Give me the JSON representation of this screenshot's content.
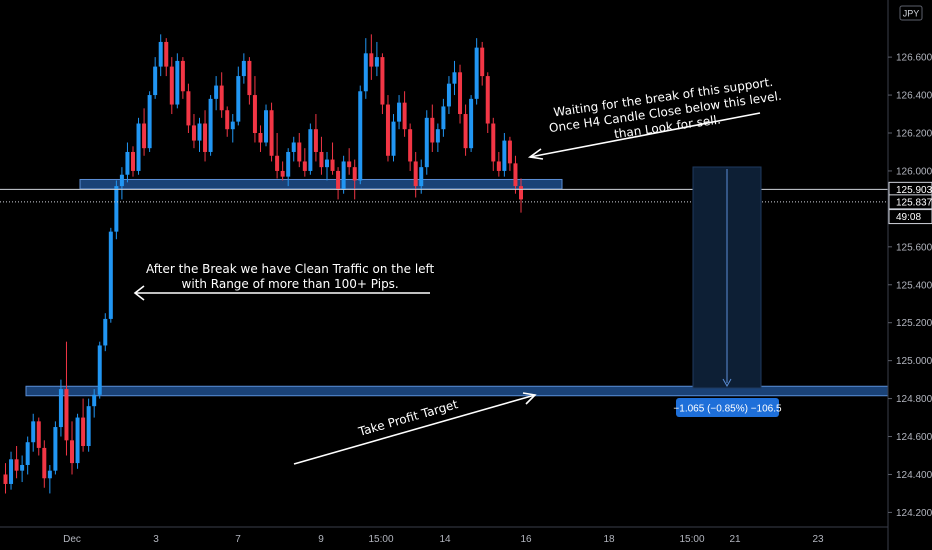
{
  "chart_data": {
    "type": "candlestick",
    "currency": "JPY",
    "ylim": [
      124.16,
      126.88
    ],
    "y_ticks": [
      "126.600",
      "126.400",
      "126.200",
      "126.000",
      "125.600",
      "125.400",
      "125.200",
      "125.000",
      "124.800",
      "124.600",
      "124.400",
      "124.200"
    ],
    "x_ticks": [
      "Dec",
      "3",
      "7",
      "9",
      "15:00",
      "14",
      "16",
      "18",
      "21",
      "23",
      "15:00"
    ],
    "price_tags": [
      {
        "label": "125.903",
        "value": 125.903,
        "style": "outline"
      },
      {
        "label": "125.837",
        "value": 125.837,
        "style": "outline"
      },
      {
        "label": "49:08",
        "value": 125.77,
        "style": "outline"
      }
    ],
    "zones": [
      {
        "name": "support",
        "low": 125.905,
        "high": 125.955
      },
      {
        "name": "target",
        "low": 124.815,
        "high": 124.865
      }
    ],
    "horizontal_lines": [
      125.903,
      125.837
    ],
    "measure": {
      "label": "−1.065 (−0.85%) −106.5",
      "from": 125.9,
      "to": 124.835
    },
    "candles": [
      [
        124.4,
        124.46,
        124.3,
        124.35
      ],
      [
        124.35,
        124.52,
        124.32,
        124.48
      ],
      [
        124.48,
        124.55,
        124.38,
        124.42
      ],
      [
        124.42,
        124.5,
        124.36,
        124.45
      ],
      [
        124.45,
        124.6,
        124.4,
        124.57
      ],
      [
        124.57,
        124.72,
        124.52,
        124.68
      ],
      [
        124.68,
        124.7,
        124.5,
        124.54
      ],
      [
        124.54,
        124.58,
        124.33,
        124.38
      ],
      [
        124.38,
        124.45,
        124.3,
        124.42
      ],
      [
        124.42,
        124.68,
        124.4,
        124.65
      ],
      [
        124.65,
        124.9,
        124.6,
        124.85
      ],
      [
        124.85,
        125.1,
        124.5,
        124.58
      ],
      [
        124.58,
        124.68,
        124.4,
        124.46
      ],
      [
        124.46,
        124.72,
        124.43,
        124.7
      ],
      [
        124.7,
        124.8,
        124.52,
        124.55
      ],
      [
        124.55,
        124.8,
        124.52,
        124.76
      ],
      [
        124.76,
        124.85,
        124.7,
        124.82
      ],
      [
        124.82,
        125.1,
        124.8,
        125.08
      ],
      [
        125.08,
        125.25,
        125.05,
        125.22
      ],
      [
        125.22,
        125.7,
        125.2,
        125.68
      ],
      [
        125.68,
        125.95,
        125.64,
        125.92
      ],
      [
        125.92,
        126.02,
        125.85,
        125.98
      ],
      [
        125.98,
        126.15,
        125.94,
        126.1
      ],
      [
        126.1,
        126.13,
        125.97,
        126.0
      ],
      [
        126.0,
        126.28,
        125.98,
        126.25
      ],
      [
        126.25,
        126.33,
        126.08,
        126.12
      ],
      [
        126.12,
        126.42,
        126.1,
        126.4
      ],
      [
        126.4,
        126.6,
        126.38,
        126.55
      ],
      [
        126.55,
        126.72,
        126.5,
        126.68
      ],
      [
        126.68,
        126.7,
        126.5,
        126.55
      ],
      [
        126.55,
        126.6,
        126.3,
        126.35
      ],
      [
        126.35,
        126.62,
        126.33,
        126.58
      ],
      [
        126.58,
        126.6,
        126.38,
        126.42
      ],
      [
        126.42,
        126.46,
        126.2,
        126.24
      ],
      [
        126.24,
        126.3,
        126.12,
        126.16
      ],
      [
        126.16,
        126.28,
        126.1,
        126.25
      ],
      [
        126.25,
        126.32,
        126.05,
        126.1
      ],
      [
        126.1,
        126.4,
        126.08,
        126.38
      ],
      [
        126.38,
        126.5,
        126.32,
        126.45
      ],
      [
        126.45,
        126.52,
        126.28,
        126.32
      ],
      [
        126.32,
        126.34,
        126.18,
        126.22
      ],
      [
        126.22,
        126.3,
        126.15,
        126.26
      ],
      [
        126.26,
        126.55,
        126.24,
        126.5
      ],
      [
        126.5,
        126.62,
        126.46,
        126.58
      ],
      [
        126.58,
        126.6,
        126.35,
        126.4
      ],
      [
        126.4,
        126.5,
        126.15,
        126.2
      ],
      [
        126.2,
        126.24,
        126.1,
        126.15
      ],
      [
        126.15,
        126.35,
        126.13,
        126.32
      ],
      [
        126.32,
        126.36,
        126.05,
        126.08
      ],
      [
        126.08,
        126.2,
        125.96,
        126.0
      ],
      [
        126.0,
        126.05,
        125.95,
        125.97
      ],
      [
        125.97,
        126.12,
        125.92,
        126.1
      ],
      [
        126.1,
        126.18,
        126.05,
        126.15
      ],
      [
        126.15,
        126.2,
        126.02,
        126.05
      ],
      [
        126.05,
        126.12,
        125.97,
        126.0
      ],
      [
        126.0,
        126.25,
        125.98,
        126.22
      ],
      [
        126.22,
        126.3,
        126.05,
        126.1
      ],
      [
        126.1,
        126.18,
        125.98,
        126.02
      ],
      [
        126.02,
        126.1,
        125.95,
        126.06
      ],
      [
        126.06,
        126.15,
        125.98,
        126.0
      ],
      [
        126.0,
        126.02,
        125.85,
        125.9
      ],
      [
        125.9,
        126.08,
        125.88,
        126.05
      ],
      [
        126.05,
        126.12,
        125.98,
        126.02
      ],
      [
        126.02,
        126.06,
        125.85,
        125.95
      ],
      [
        125.95,
        126.45,
        125.93,
        126.42
      ],
      [
        126.42,
        126.7,
        126.38,
        126.62
      ],
      [
        126.62,
        126.72,
        126.48,
        126.55
      ],
      [
        126.55,
        126.68,
        126.5,
        126.6
      ],
      [
        126.6,
        126.62,
        126.3,
        126.35
      ],
      [
        126.35,
        126.4,
        126.05,
        126.08
      ],
      [
        126.08,
        126.3,
        126.05,
        126.26
      ],
      [
        126.26,
        126.4,
        126.22,
        126.36
      ],
      [
        126.36,
        126.42,
        126.18,
        126.22
      ],
      [
        126.22,
        126.25,
        126.0,
        126.05
      ],
      [
        126.05,
        126.1,
        125.86,
        125.92
      ],
      [
        125.92,
        126.06,
        125.88,
        126.02
      ],
      [
        126.02,
        126.32,
        125.98,
        126.28
      ],
      [
        126.28,
        126.35,
        126.1,
        126.15
      ],
      [
        126.15,
        126.25,
        126.1,
        126.22
      ],
      [
        126.22,
        126.38,
        126.18,
        126.34
      ],
      [
        126.34,
        126.5,
        126.3,
        126.46
      ],
      [
        126.46,
        126.58,
        126.4,
        126.52
      ],
      [
        126.52,
        126.56,
        126.25,
        126.3
      ],
      [
        126.3,
        126.35,
        126.08,
        126.12
      ],
      [
        126.12,
        126.4,
        126.1,
        126.38
      ],
      [
        126.38,
        126.7,
        126.35,
        126.65
      ],
      [
        126.65,
        126.68,
        126.45,
        126.5
      ],
      [
        126.5,
        126.52,
        126.2,
        126.25
      ],
      [
        126.25,
        126.28,
        126.0,
        126.05
      ],
      [
        126.05,
        126.1,
        125.97,
        126.0
      ],
      [
        126.0,
        126.2,
        125.97,
        126.16
      ],
      [
        126.16,
        126.18,
        126.0,
        126.04
      ],
      [
        126.04,
        126.08,
        125.88,
        125.92
      ],
      [
        125.92,
        125.96,
        125.78,
        125.85
      ]
    ]
  },
  "annotations": {
    "support_note_line1": "Waiting for the break of this support.",
    "support_note_line2": "Once H4 Candle Close below this level.",
    "support_note_line3": "than Look for sell.",
    "traffic_note_line1": "After the Break we have Clean Traffic on the left",
    "traffic_note_line2": "with Range of more than 100+ Pips.",
    "target_note": "Take Profit Target"
  },
  "colors": {
    "bull": "#2196f3",
    "bear": "#f23645",
    "zone_fill": "#1e4e8c",
    "zone_border": "#5b8ed6",
    "axis_text": "#b2b5be",
    "measure_bg": "#1e6fd9"
  }
}
